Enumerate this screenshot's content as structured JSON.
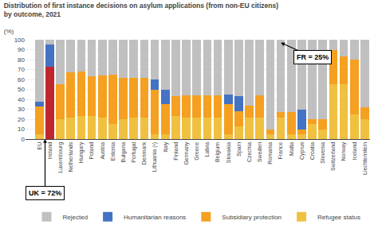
{
  "chart_data": {
    "type": "bar",
    "stacked": true,
    "title": "Distribution of first instance decisions on asylum applications (from non-EU citizens)\nby outcome, 2021",
    "subtitle": "(%)",
    "categories": [
      "EU",
      "Ireland",
      "Luxembourg",
      "Netherlands",
      "Hungary",
      "Poland",
      "Austria",
      "Estonia",
      "Bulgaria",
      "Portugal",
      "Denmark",
      "Lithuania (¹)",
      "Italy",
      "Finland",
      "Germany",
      "Greece",
      "Latvia",
      "Belgium",
      "Slovakia",
      "Spain",
      "Czechia",
      "Sweden",
      "Romania",
      "France",
      "Malta",
      "Cyprus",
      "Croatia",
      "Slovenia",
      "Switzerland",
      "Norway",
      "Iceland",
      "Liechtenstein"
    ],
    "series": [
      {
        "name": "Refugee status",
        "color": "#f0c040",
        "colors": [
          "#f0c040",
          "#c0272d",
          "#f0c040",
          "#f0c040",
          "#f0c040",
          "#f0c040",
          "#f0c040",
          "#f0c040",
          "#f0c040",
          "#f0c040",
          "#f0c040",
          "#f0c040",
          "#f0c040",
          "#f0c040",
          "#f0c040",
          "#f0c040",
          "#f0c040",
          "#f0c040",
          "#f0c040",
          "#f0c040",
          "#f0c040",
          "#f0c040",
          "#f0c040",
          "#f0c040",
          "#f0c040",
          "#f0c040",
          "#f0c040",
          "#f0c040",
          "#f0c040",
          "#f0c040",
          "#f0c040",
          "#f0c040"
        ],
        "values": [
          5,
          73,
          20,
          22,
          23,
          23,
          22,
          15,
          20,
          22,
          22,
          5,
          5,
          23,
          22,
          22,
          22,
          22,
          5,
          13,
          22,
          22,
          5,
          22,
          5,
          5,
          15,
          10,
          55,
          55,
          25,
          20
        ]
      },
      {
        "name": "Subsidiary protection",
        "color": "#f5a020",
        "values": [
          28,
          0,
          35,
          45,
          45,
          40,
          42,
          50,
          42,
          40,
          40,
          45,
          30,
          20,
          22,
          22,
          22,
          22,
          30,
          15,
          12,
          22,
          5,
          5,
          22,
          5,
          5,
          10,
          35,
          28,
          55,
          12
        ]
      },
      {
        "name": "Humanitarian reasons",
        "color": "#4472c4",
        "values": [
          5,
          22,
          0,
          0,
          0,
          0,
          0,
          0,
          0,
          0,
          0,
          10,
          15,
          0,
          0,
          0,
          0,
          0,
          10,
          15,
          0,
          0,
          0,
          0,
          0,
          20,
          0,
          0,
          0,
          0,
          0,
          0
        ]
      },
      {
        "name": "Rejected",
        "color": "#c0c0c0",
        "values": [
          62,
          5,
          45,
          33,
          32,
          37,
          36,
          35,
          38,
          38,
          38,
          40,
          50,
          57,
          56,
          56,
          56,
          56,
          55,
          57,
          66,
          56,
          90,
          73,
          73,
          70,
          80,
          80,
          10,
          17,
          20,
          68
        ]
      }
    ],
    "annotations": [
      {
        "text": "FR = 25%",
        "category": "France"
      },
      {
        "text": "UK = 72%",
        "category": "Ireland"
      }
    ],
    "ylim": [
      0,
      100
    ],
    "yticks": [
      0,
      10,
      20,
      30,
      40,
      50,
      60,
      70,
      80,
      90,
      100
    ],
    "grid": true,
    "legend": "bottom"
  }
}
